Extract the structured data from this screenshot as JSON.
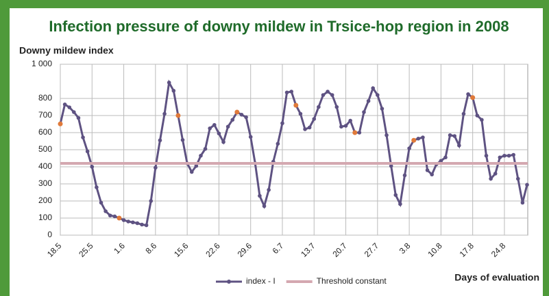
{
  "chart_data": {
    "type": "line",
    "title": "Infection pressure of downy mildew in Trsice-hop region in 2008",
    "y_label": "Downy mildew index",
    "x_label": "Days of evaluation",
    "categories": [
      "18.5",
      null,
      null,
      null,
      null,
      null,
      null,
      "25.5",
      null,
      null,
      null,
      null,
      null,
      null,
      "1.6",
      null,
      null,
      null,
      null,
      null,
      null,
      "8.6",
      null,
      null,
      null,
      null,
      null,
      null,
      "15.6",
      null,
      null,
      null,
      null,
      null,
      null,
      "22.6",
      null,
      null,
      null,
      null,
      null,
      null,
      "29.6",
      null,
      null,
      null,
      null,
      null,
      null,
      "6.7",
      null,
      null,
      null,
      null,
      null,
      null,
      "13.7",
      null,
      null,
      null,
      null,
      null,
      null,
      "20.7",
      null,
      null,
      null,
      null,
      null,
      null,
      "27.7",
      null,
      null,
      null,
      null,
      null,
      null,
      "3.8",
      null,
      null,
      null,
      null,
      null,
      null,
      "10.8",
      null,
      null,
      null,
      null,
      null,
      null,
      "17.8",
      null,
      null,
      null,
      null,
      null,
      null,
      "24.8",
      null,
      null,
      null,
      null,
      null
    ],
    "series": [
      {
        "name": "index - I",
        "color": "#5e5282",
        "highlight_color": "#e07a3a",
        "highlight_points": [
          0,
          13,
          26,
          39,
          52,
          65,
          78,
          91
        ],
        "values": [
          651,
          765,
          748,
          720,
          686,
          572,
          490,
          400,
          280,
          190,
          140,
          115,
          110,
          100,
          88,
          80,
          75,
          70,
          62,
          58,
          200,
          395,
          555,
          710,
          893,
          845,
          700,
          557,
          420,
          370,
          405,
          465,
          505,
          625,
          645,
          595,
          545,
          635,
          675,
          720,
          705,
          690,
          575,
          420,
          230,
          170,
          265,
          430,
          535,
          655,
          835,
          840,
          760,
          710,
          620,
          630,
          680,
          750,
          820,
          840,
          820,
          750,
          635,
          640,
          670,
          600,
          600,
          720,
          785,
          860,
          820,
          740,
          585,
          405,
          235,
          182,
          350,
          508,
          555,
          565,
          572,
          380,
          355,
          415,
          435,
          455,
          585,
          580,
          525,
          710,
          825,
          805,
          700,
          675,
          465,
          330,
          360,
          455,
          465,
          465,
          470,
          330,
          190,
          295
        ]
      },
      {
        "name": "Threshold constant",
        "color": "#d4a8b0",
        "value": 420
      }
    ],
    "ylim": [
      0,
      1000
    ],
    "yticks": [
      0,
      100,
      200,
      300,
      400,
      500,
      600,
      700,
      800,
      {
        "value": 1000,
        "label": "1 000"
      }
    ],
    "grid": true
  }
}
